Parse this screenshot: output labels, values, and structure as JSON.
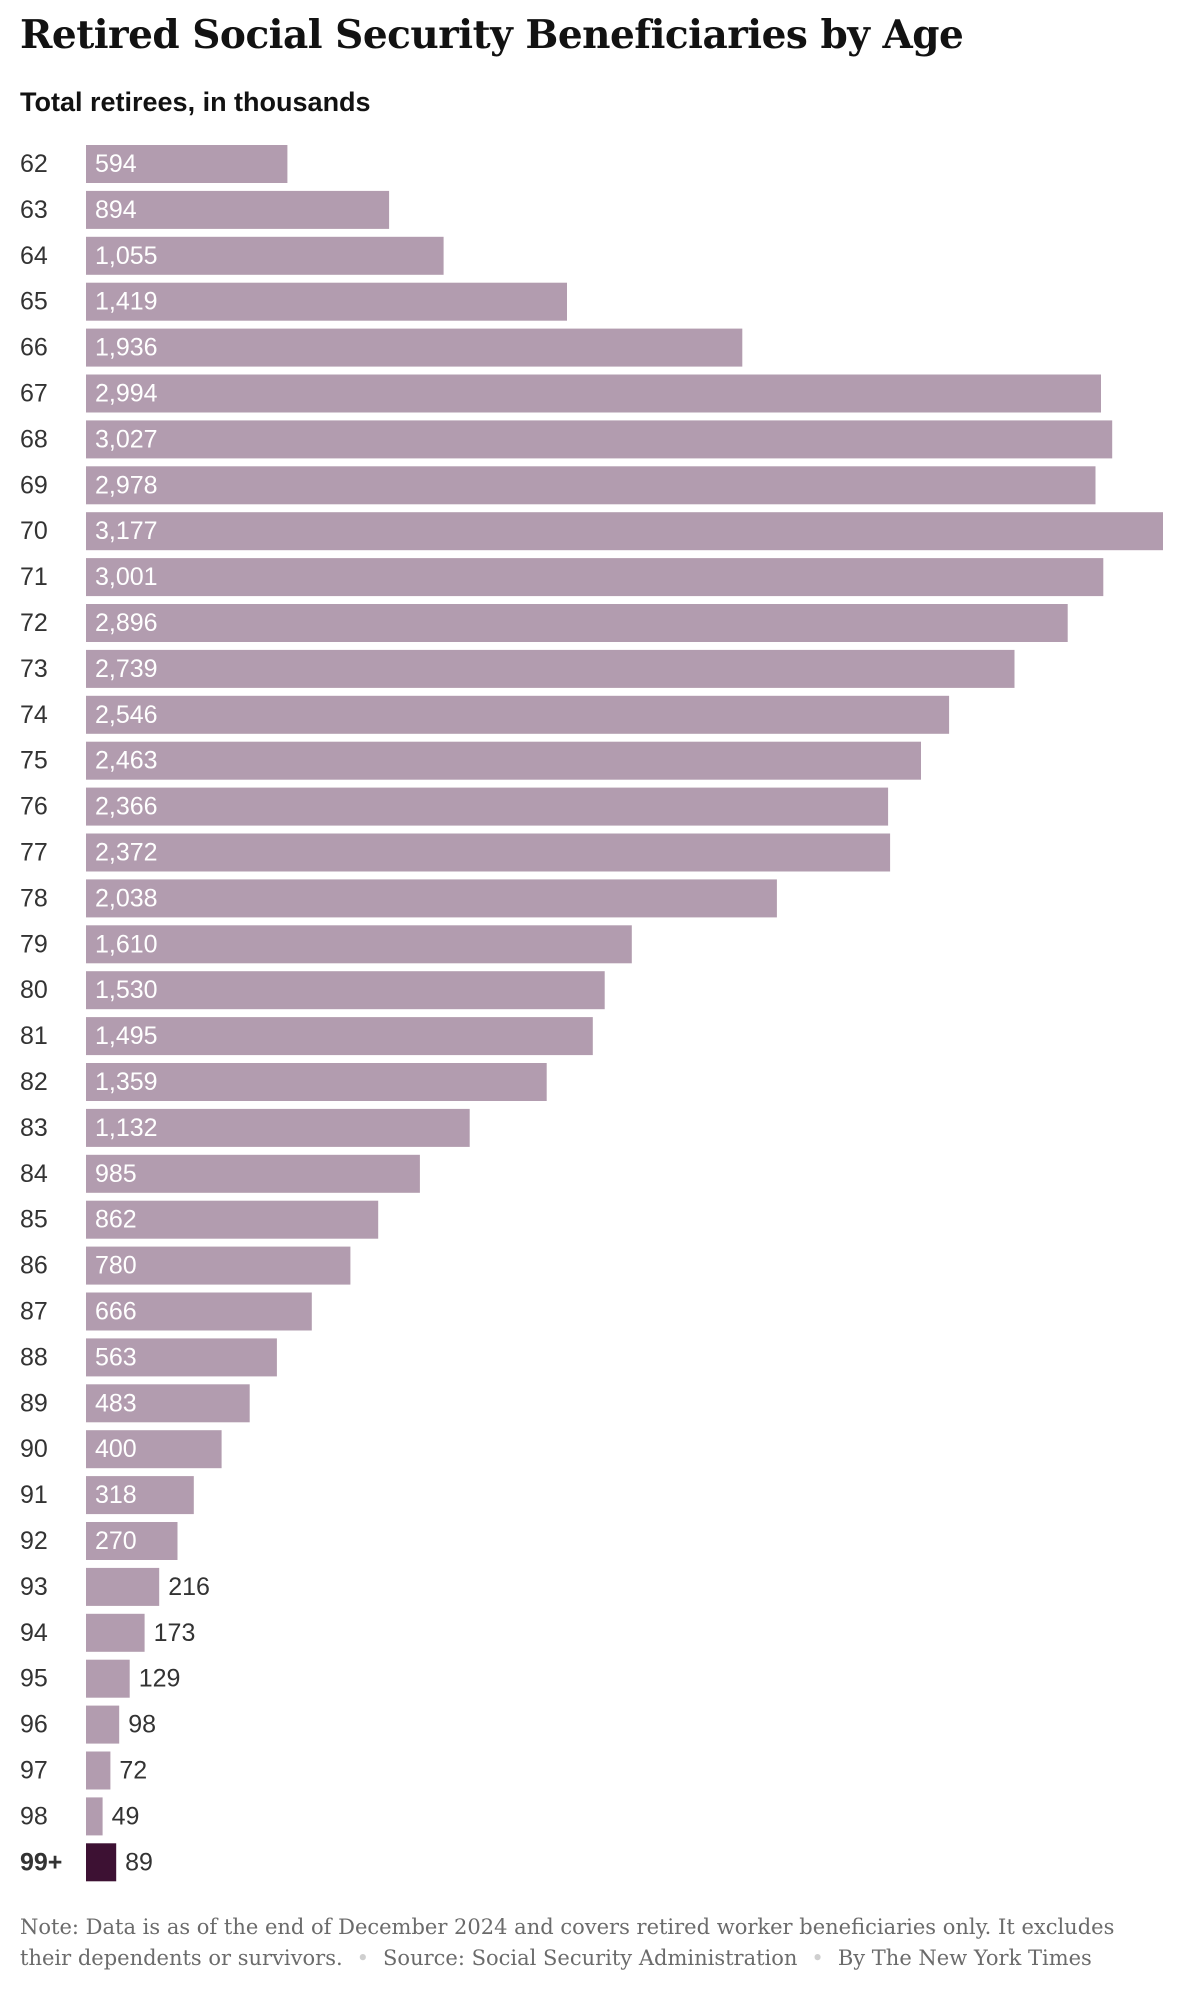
{
  "chart_data": {
    "type": "bar",
    "orientation": "horizontal",
    "title": "Retired Social Security Beneficiaries by Age",
    "subtitle": "Total retirees, in thousands",
    "categories": [
      "62",
      "63",
      "64",
      "65",
      "66",
      "67",
      "68",
      "69",
      "70",
      "71",
      "72",
      "73",
      "74",
      "75",
      "76",
      "77",
      "78",
      "79",
      "80",
      "81",
      "82",
      "83",
      "84",
      "85",
      "86",
      "87",
      "88",
      "89",
      "90",
      "91",
      "92",
      "93",
      "94",
      "95",
      "96",
      "97",
      "98",
      "99+"
    ],
    "values": [
      594,
      894,
      1055,
      1419,
      1936,
      2994,
      3027,
      2978,
      3177,
      3001,
      2896,
      2739,
      2546,
      2463,
      2366,
      2372,
      2038,
      1610,
      1530,
      1495,
      1359,
      1132,
      985,
      862,
      780,
      666,
      563,
      483,
      400,
      318,
      270,
      216,
      173,
      129,
      98,
      72,
      49,
      89
    ],
    "labels": [
      "594",
      "894",
      "1,055",
      "1,419",
      "1,936",
      "2,994",
      "3,027",
      "2,978",
      "3,177",
      "3,001",
      "2,896",
      "2,739",
      "2,546",
      "2,463",
      "2,366",
      "2,372",
      "2,038",
      "1,610",
      "1,530",
      "1,495",
      "1,359",
      "1,132",
      "985",
      "862",
      "780",
      "666",
      "563",
      "483",
      "400",
      "318",
      "270",
      "216",
      "173",
      "129",
      "98",
      "72",
      "49",
      "89"
    ],
    "highlight_category": "99+",
    "xlim": [
      0,
      3177
    ],
    "grid": false,
    "legend": "none"
  },
  "colors": {
    "bar": "#b29caf",
    "highlight": "#3d1133",
    "inside_label": "#ffffff",
    "outside_label": "#333333"
  },
  "footer": {
    "note_label": "Note:",
    "note_text": "Data is as of the end of December 2024 and covers retired worker beneficiaries only. It excludes their dependents or survivors.",
    "separator": "•",
    "source_label": "Source:",
    "source_text": "Social Security Administration",
    "byline": "By The New York Times"
  }
}
